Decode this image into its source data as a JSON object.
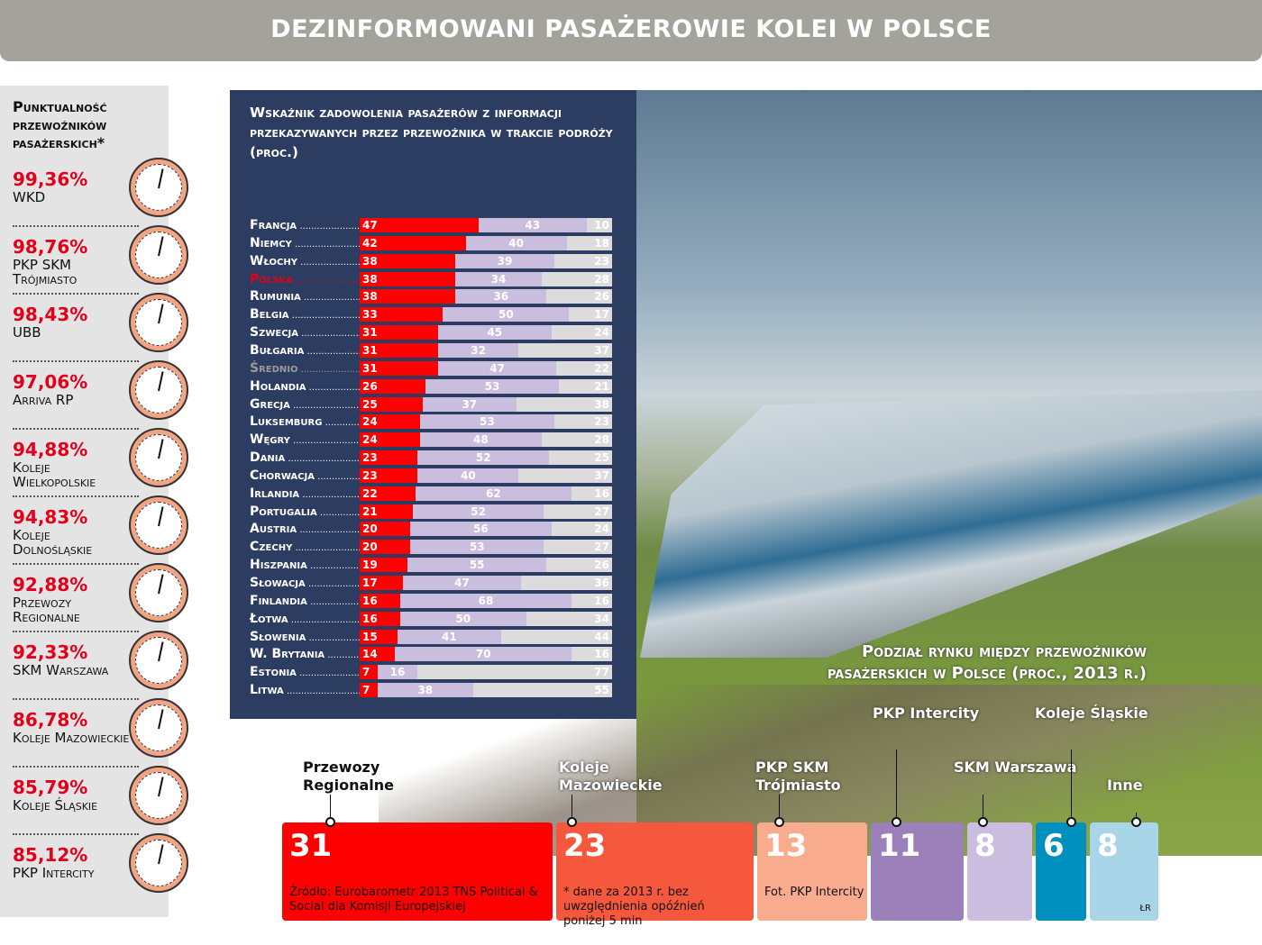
{
  "title": "DEZINFORMOWANI PASAŻEROWIE KOLEI W POLSCE",
  "punctuality": {
    "title": "Punktualność przewoźników pasażerskich*",
    "items": [
      {
        "value": "99,36%",
        "name": "WKD"
      },
      {
        "value": "98,76%",
        "name": "PKP SKM Trójmiasto"
      },
      {
        "value": "98,43%",
        "name": "UBB"
      },
      {
        "value": "97,06%",
        "name": "Arriva RP"
      },
      {
        "value": "94,88%",
        "name": "Koleje Wielkopolskie"
      },
      {
        "value": "94,83%",
        "name": "Koleje Dolnośląskie"
      },
      {
        "value": "92,88%",
        "name": "Przewozy Regionalne"
      },
      {
        "value": "92,33%",
        "name": "SKM Warszawa"
      },
      {
        "value": "86,78%",
        "name": "Koleje Mazowieckie"
      },
      {
        "value": "85,79%",
        "name": "Koleje Śląskie"
      },
      {
        "value": "85,12%",
        "name": "PKP Intercity"
      }
    ]
  },
  "chart_data": [
    {
      "type": "bar",
      "stacked": true,
      "orientation": "horizontal",
      "title": "Wskaźnik zadowolenia pasażerów z informacji przekazywanych przez przewoźnika w trakcie podróży (proc.)",
      "categories": [
        "Francja",
        "Niemcy",
        "Włochy",
        "Polska",
        "Rumunia",
        "Belgia",
        "Szwecja",
        "Bułgaria",
        "Średnio",
        "Holandia",
        "Grecja",
        "Luksemburg",
        "Węgry",
        "Dania",
        "Chorwacja",
        "Irlandia",
        "Portugalia",
        "Austria",
        "Czechy",
        "Hiszpania",
        "Słowacja",
        "Finlandia",
        "Łotwa",
        "Słowenia",
        "W. Brytania",
        "Estonia",
        "Litwa"
      ],
      "highlight": {
        "Polska": "#e2001a",
        "Średnio": "#9a9a9a"
      },
      "series": [
        {
          "color": "#ff0000",
          "values": [
            47,
            42,
            38,
            38,
            38,
            33,
            31,
            31,
            31,
            26,
            25,
            24,
            24,
            23,
            23,
            22,
            21,
            20,
            20,
            19,
            17,
            16,
            16,
            15,
            14,
            7,
            7
          ]
        },
        {
          "color": "#c9bedd",
          "values": [
            43,
            40,
            39,
            34,
            36,
            50,
            45,
            32,
            47,
            53,
            37,
            53,
            48,
            52,
            40,
            62,
            52,
            56,
            53,
            55,
            47,
            68,
            50,
            41,
            70,
            16,
            38
          ]
        },
        {
          "color": "#dcdcdc",
          "values": [
            10,
            18,
            23,
            28,
            26,
            17,
            24,
            37,
            22,
            21,
            38,
            23,
            28,
            25,
            37,
            16,
            27,
            24,
            27,
            26,
            36,
            16,
            34,
            44,
            16,
            77,
            55
          ]
        }
      ]
    },
    {
      "type": "bar",
      "stacked": true,
      "title": "Podział rynku między przewoźników pasażerskich w Polsce (proc., 2013 r.)",
      "categories": [
        "Przewozy Regionalne",
        "Koleje Mazowieckie",
        "PKP SKM Trójmiasto",
        "PKP Intercity",
        "SKM Warszawa",
        "Koleje Śląskie",
        "Inne"
      ],
      "values": [
        31,
        23,
        13,
        11,
        8,
        6,
        8
      ],
      "colors": [
        "#ff0000",
        "#f5583c",
        "#f9ab8e",
        "#9c80b9",
        "#cbbde0",
        "#0090c0",
        "#a9d5e9"
      ]
    }
  ],
  "notes": {
    "source": "Źródło: Eurobarometr 2013 TNS Political & Social dla Komisji Europejskiej",
    "footnote": "* dane za 2013 r. bez uwzględnienia opóźnień poniżej 5 min",
    "photo": "Fot. PKP Intercity",
    "author": "ŁR"
  }
}
